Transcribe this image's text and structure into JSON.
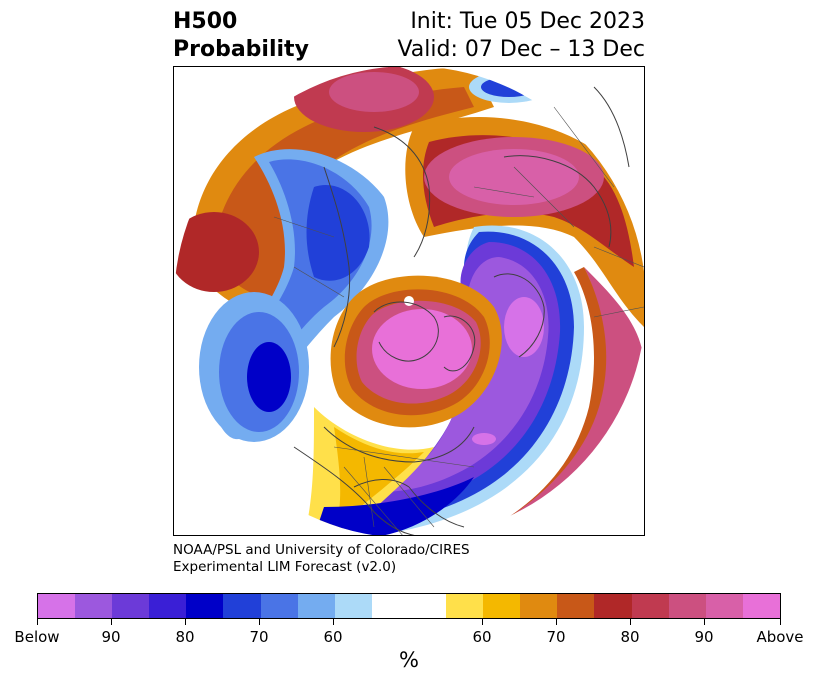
{
  "title": {
    "line1": "H500",
    "line2": "Probability",
    "init": "Init: Tue 05 Dec 2023",
    "valid": "Valid: 07 Dec – 13 Dec"
  },
  "credit": {
    "line1": "NOAA/PSL and University of Colorado/CIRES",
    "line2": "Experimental LIM Forecast (v2.0)"
  },
  "colorbar": {
    "units": "%",
    "colors": [
      "#d672e8",
      "#9c58de",
      "#6c3ad8",
      "#3a1fd6",
      "#0000c8",
      "#2140d8",
      "#4a74e6",
      "#74acf0",
      "#acdaf8",
      "#ffffff",
      "#ffe04a",
      "#f4b800",
      "#e08a10",
      "#c85818",
      "#b02828",
      "#c03a50",
      "#cc5080",
      "#d860a8",
      "#e870d8"
    ],
    "labels": [
      "Below",
      "90",
      "80",
      "70",
      "60",
      "60",
      "70",
      "80",
      "90",
      "Above"
    ]
  },
  "map": {
    "projection": "north-polar-stereographic",
    "field": "500-hPa height anomaly probability",
    "features": [
      "coastlines",
      "country-borders",
      "state-borders"
    ]
  }
}
